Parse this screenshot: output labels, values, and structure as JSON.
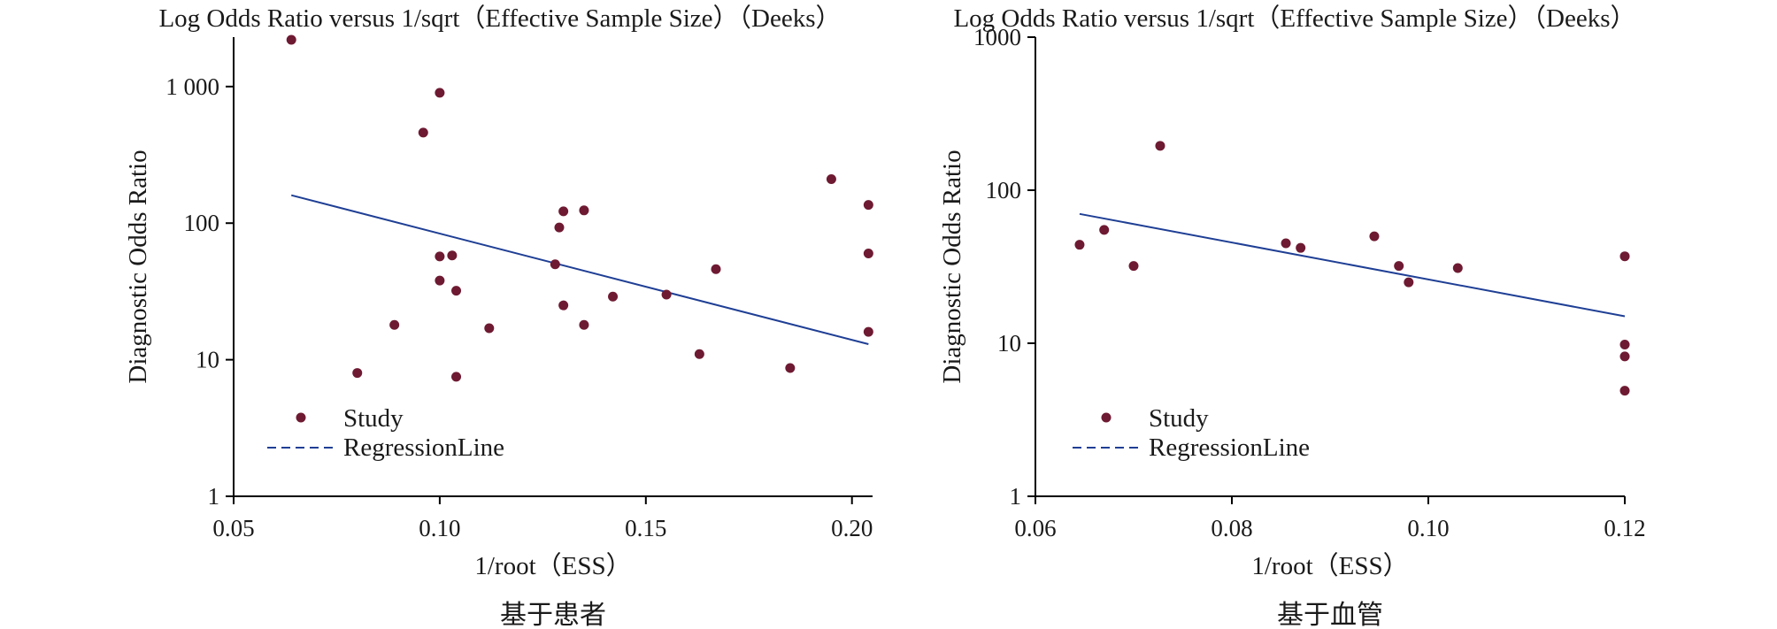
{
  "chart_data": [
    {
      "type": "scatter",
      "title": "Log Odds Ratio versus 1/sqrt（Effective Sample Size）（Deeks）",
      "xlabel": "1/root（ESS）",
      "ylabel": "Diagnostic Odds Ratio",
      "caption": "基于患者",
      "y_scale": "log",
      "xlim": [
        0.05,
        0.205
      ],
      "ylim": [
        1,
        2300
      ],
      "x_ticks": [
        0.05,
        0.1,
        0.15,
        0.2
      ],
      "x_tick_labels": [
        "0.05",
        "0.10",
        "0.15",
        "0.20"
      ],
      "y_ticks": [
        1,
        10,
        100,
        1000
      ],
      "y_tick_labels": [
        "1",
        "10",
        "100",
        "1 000"
      ],
      "grid": false,
      "legend": {
        "position": "bottom-left",
        "items": [
          "Study",
          "RegressionLine"
        ]
      },
      "colors": {
        "points": "#6e1a32",
        "line": "#1f3f95"
      },
      "series": [
        {
          "name": "Study",
          "type": "scatter",
          "points": [
            [
              0.064,
              2200
            ],
            [
              0.08,
              8
            ],
            [
              0.089,
              18
            ],
            [
              0.096,
              460
            ],
            [
              0.1,
              900
            ],
            [
              0.1,
              57
            ],
            [
              0.1,
              38
            ],
            [
              0.103,
              58
            ],
            [
              0.104,
              32
            ],
            [
              0.104,
              7.5
            ],
            [
              0.112,
              17
            ],
            [
              0.128,
              50
            ],
            [
              0.129,
              93
            ],
            [
              0.13,
              122
            ],
            [
              0.13,
              25
            ],
            [
              0.135,
              124
            ],
            [
              0.135,
              18
            ],
            [
              0.142,
              29
            ],
            [
              0.155,
              30
            ],
            [
              0.163,
              11
            ],
            [
              0.167,
              46
            ],
            [
              0.185,
              8.7
            ],
            [
              0.195,
              210
            ],
            [
              0.204,
              136
            ],
            [
              0.204,
              60
            ],
            [
              0.204,
              16
            ]
          ]
        },
        {
          "name": "RegressionLine",
          "type": "line",
          "points": [
            [
              0.064,
              160
            ],
            [
              0.204,
              13
            ]
          ]
        }
      ]
    },
    {
      "type": "scatter",
      "title": "Log Odds Ratio versus 1/sqrt（Effective Sample Size）（Deeks）",
      "xlabel": "1/root（ESS）",
      "ylabel": "Diagnostic Odds Ratio",
      "caption": "基于血管",
      "y_scale": "log",
      "xlim": [
        0.06,
        0.12
      ],
      "ylim": [
        1,
        1000
      ],
      "x_ticks": [
        0.06,
        0.08,
        0.1,
        0.12
      ],
      "x_tick_labels": [
        "0.06",
        "0.08",
        "0.10",
        "0.12"
      ],
      "y_ticks": [
        1,
        10,
        100,
        1000
      ],
      "y_tick_labels": [
        "1",
        "10",
        "100",
        "1000"
      ],
      "grid": false,
      "legend": {
        "position": "bottom-left",
        "items": [
          "Study",
          "RegressionLine"
        ]
      },
      "colors": {
        "points": "#6e1a32",
        "line": "#1f3f95"
      },
      "series": [
        {
          "name": "Study",
          "type": "scatter",
          "points": [
            [
              0.0645,
              44
            ],
            [
              0.067,
              55
            ],
            [
              0.07,
              32
            ],
            [
              0.0727,
              195
            ],
            [
              0.0855,
              45
            ],
            [
              0.087,
              42
            ],
            [
              0.0945,
              50
            ],
            [
              0.097,
              32
            ],
            [
              0.098,
              25
            ],
            [
              0.103,
              31
            ],
            [
              0.12,
              37
            ],
            [
              0.12,
              9.8
            ],
            [
              0.12,
              8.2
            ],
            [
              0.12,
              4.9
            ]
          ]
        },
        {
          "name": "RegressionLine",
          "type": "line",
          "points": [
            [
              0.0645,
              70
            ],
            [
              0.12,
              15
            ]
          ]
        }
      ]
    }
  ]
}
